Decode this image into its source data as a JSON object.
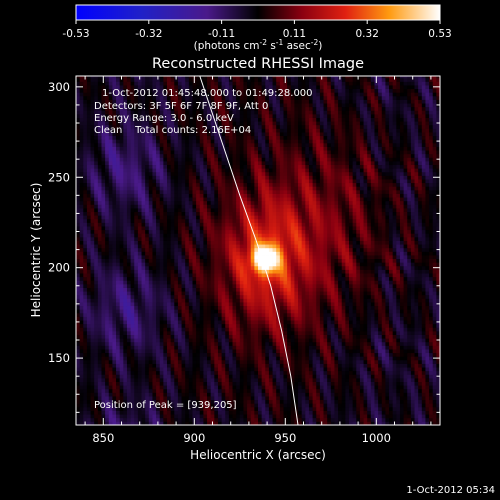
{
  "chart_data": {
    "type": "heatmap",
    "title": "Reconstructed RHESSI Image",
    "xlabel": "Heliocentric X (arcsec)",
    "ylabel": "Heliocentric Y (arcsec)",
    "xlim": [
      835,
      1035
    ],
    "ylim": [
      113,
      306
    ],
    "x_ticks": [
      850,
      900,
      950,
      1000
    ],
    "y_ticks": [
      150,
      200,
      250,
      300
    ],
    "colorbar": {
      "ticks": [
        "-0.53",
        "-0.32",
        "-0.11",
        "0.11",
        "0.32",
        "0.53"
      ],
      "range": [
        -0.53,
        0.53
      ],
      "label": "(photons cm",
      "label_exp1": "-2",
      "label_mid": " s",
      "label_exp2": "-1",
      "label_mid2": " asec",
      "label_exp3": "-2",
      "label_end": ")"
    },
    "info_lines": [
      "1-Oct-2012 01:45:48.000 to 01:49:28.000",
      "Detectors: 3F 5F 6F 7F 8F 9F, Att 0",
      "Energy Range: 3.0 - 6.0 keV",
      "Clean    Total counts: 2.16E+04"
    ],
    "peak_label": "Position of Peak = [939,205]",
    "peak": [
      939,
      205
    ],
    "peak_value": 0.53,
    "limb_curve": [
      [
        903,
        306
      ],
      [
        915,
        270
      ],
      [
        925,
        240
      ],
      [
        934,
        215
      ],
      [
        942,
        190
      ],
      [
        948,
        165
      ],
      [
        953,
        140
      ],
      [
        957,
        113
      ]
    ]
  },
  "footer": {
    "timestamp": "1-Oct-2012 05:34"
  }
}
